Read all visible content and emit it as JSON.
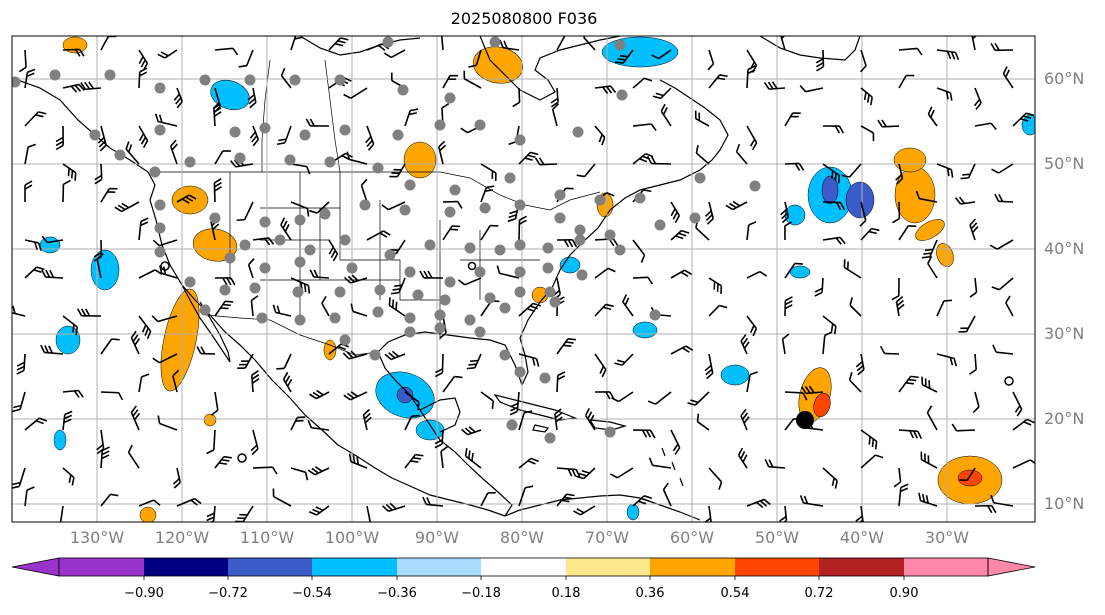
{
  "title": "2025080800 F036",
  "lat_labels": [
    "60°N",
    "50°N",
    "40°N",
    "30°N",
    "20°N",
    "10°N"
  ],
  "lon_labels": [
    "130°W",
    "120°W",
    "110°W",
    "100°W",
    "90°W",
    "80°W",
    "70°W",
    "60°W",
    "50°W",
    "40°W",
    "30°W"
  ],
  "colorbar": {
    "ticks": [
      "−0.90",
      "−0.72",
      "−0.54",
      "−0.36",
      "−0.18",
      "0.18",
      "0.36",
      "0.54",
      "0.72",
      "0.90"
    ],
    "colors": [
      "#9933cc",
      "#000080",
      "#3a5bc8",
      "#00bfff",
      "#a8dcff",
      "#ffffff",
      "#ffe88c",
      "#ffa500",
      "#ff4500",
      "#b22222",
      "#ff88aa"
    ],
    "extend": "both"
  },
  "map": {
    "projection": "plate-carree",
    "lon_range": [
      -140,
      -20
    ],
    "lat_range": [
      8,
      65
    ],
    "gridlines": true,
    "wind_barbs": true,
    "station_markers_color": "#808080",
    "large_marker": {
      "lon": -47,
      "lat": 20,
      "color": "#000000"
    }
  }
}
